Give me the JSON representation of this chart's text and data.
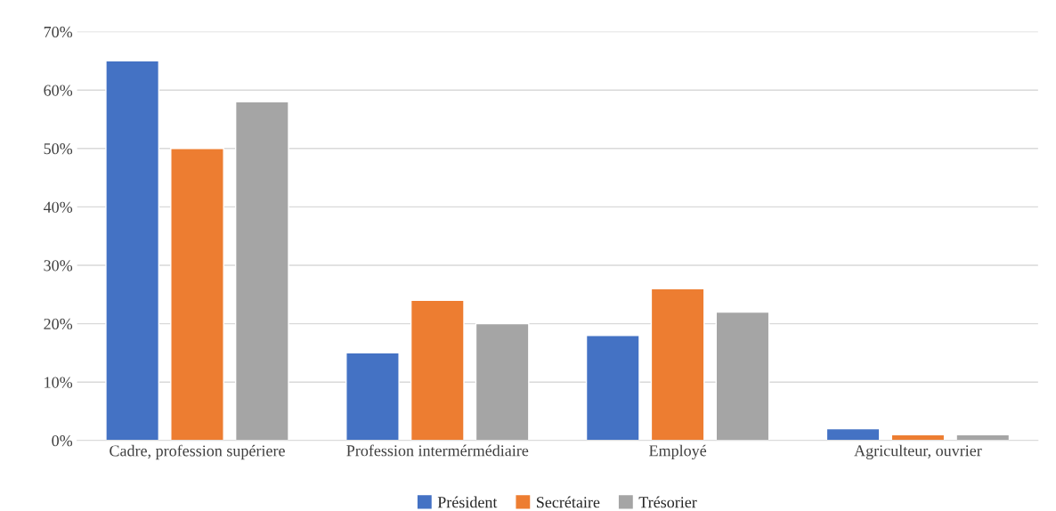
{
  "chart_data": {
    "type": "bar",
    "categories": [
      "Cadre, profession supériere",
      "Profession intermérmédiaire",
      "Employé",
      "Agriculteur, ouvrier"
    ],
    "series": [
      {
        "name": "Président",
        "color": "#4472c4",
        "values": [
          65,
          15,
          18,
          2
        ]
      },
      {
        "name": "Secrétaire",
        "color": "#ed7d31",
        "values": [
          50,
          24,
          26,
          1
        ]
      },
      {
        "name": "Trésorier",
        "color": "#a5a5a5",
        "values": [
          58,
          20,
          22,
          1
        ]
      }
    ],
    "ylim": [
      0,
      70
    ],
    "yticks": [
      {
        "value": 0,
        "label": "0%"
      },
      {
        "value": 10,
        "label": "10%"
      },
      {
        "value": 20,
        "label": "20%"
      },
      {
        "value": 30,
        "label": "30%"
      },
      {
        "value": 40,
        "label": "40%"
      },
      {
        "value": 50,
        "label": "50%"
      },
      {
        "value": 60,
        "label": "60%"
      },
      {
        "value": 70,
        "label": "70%"
      }
    ],
    "grid": "y",
    "legend": "bottom"
  }
}
